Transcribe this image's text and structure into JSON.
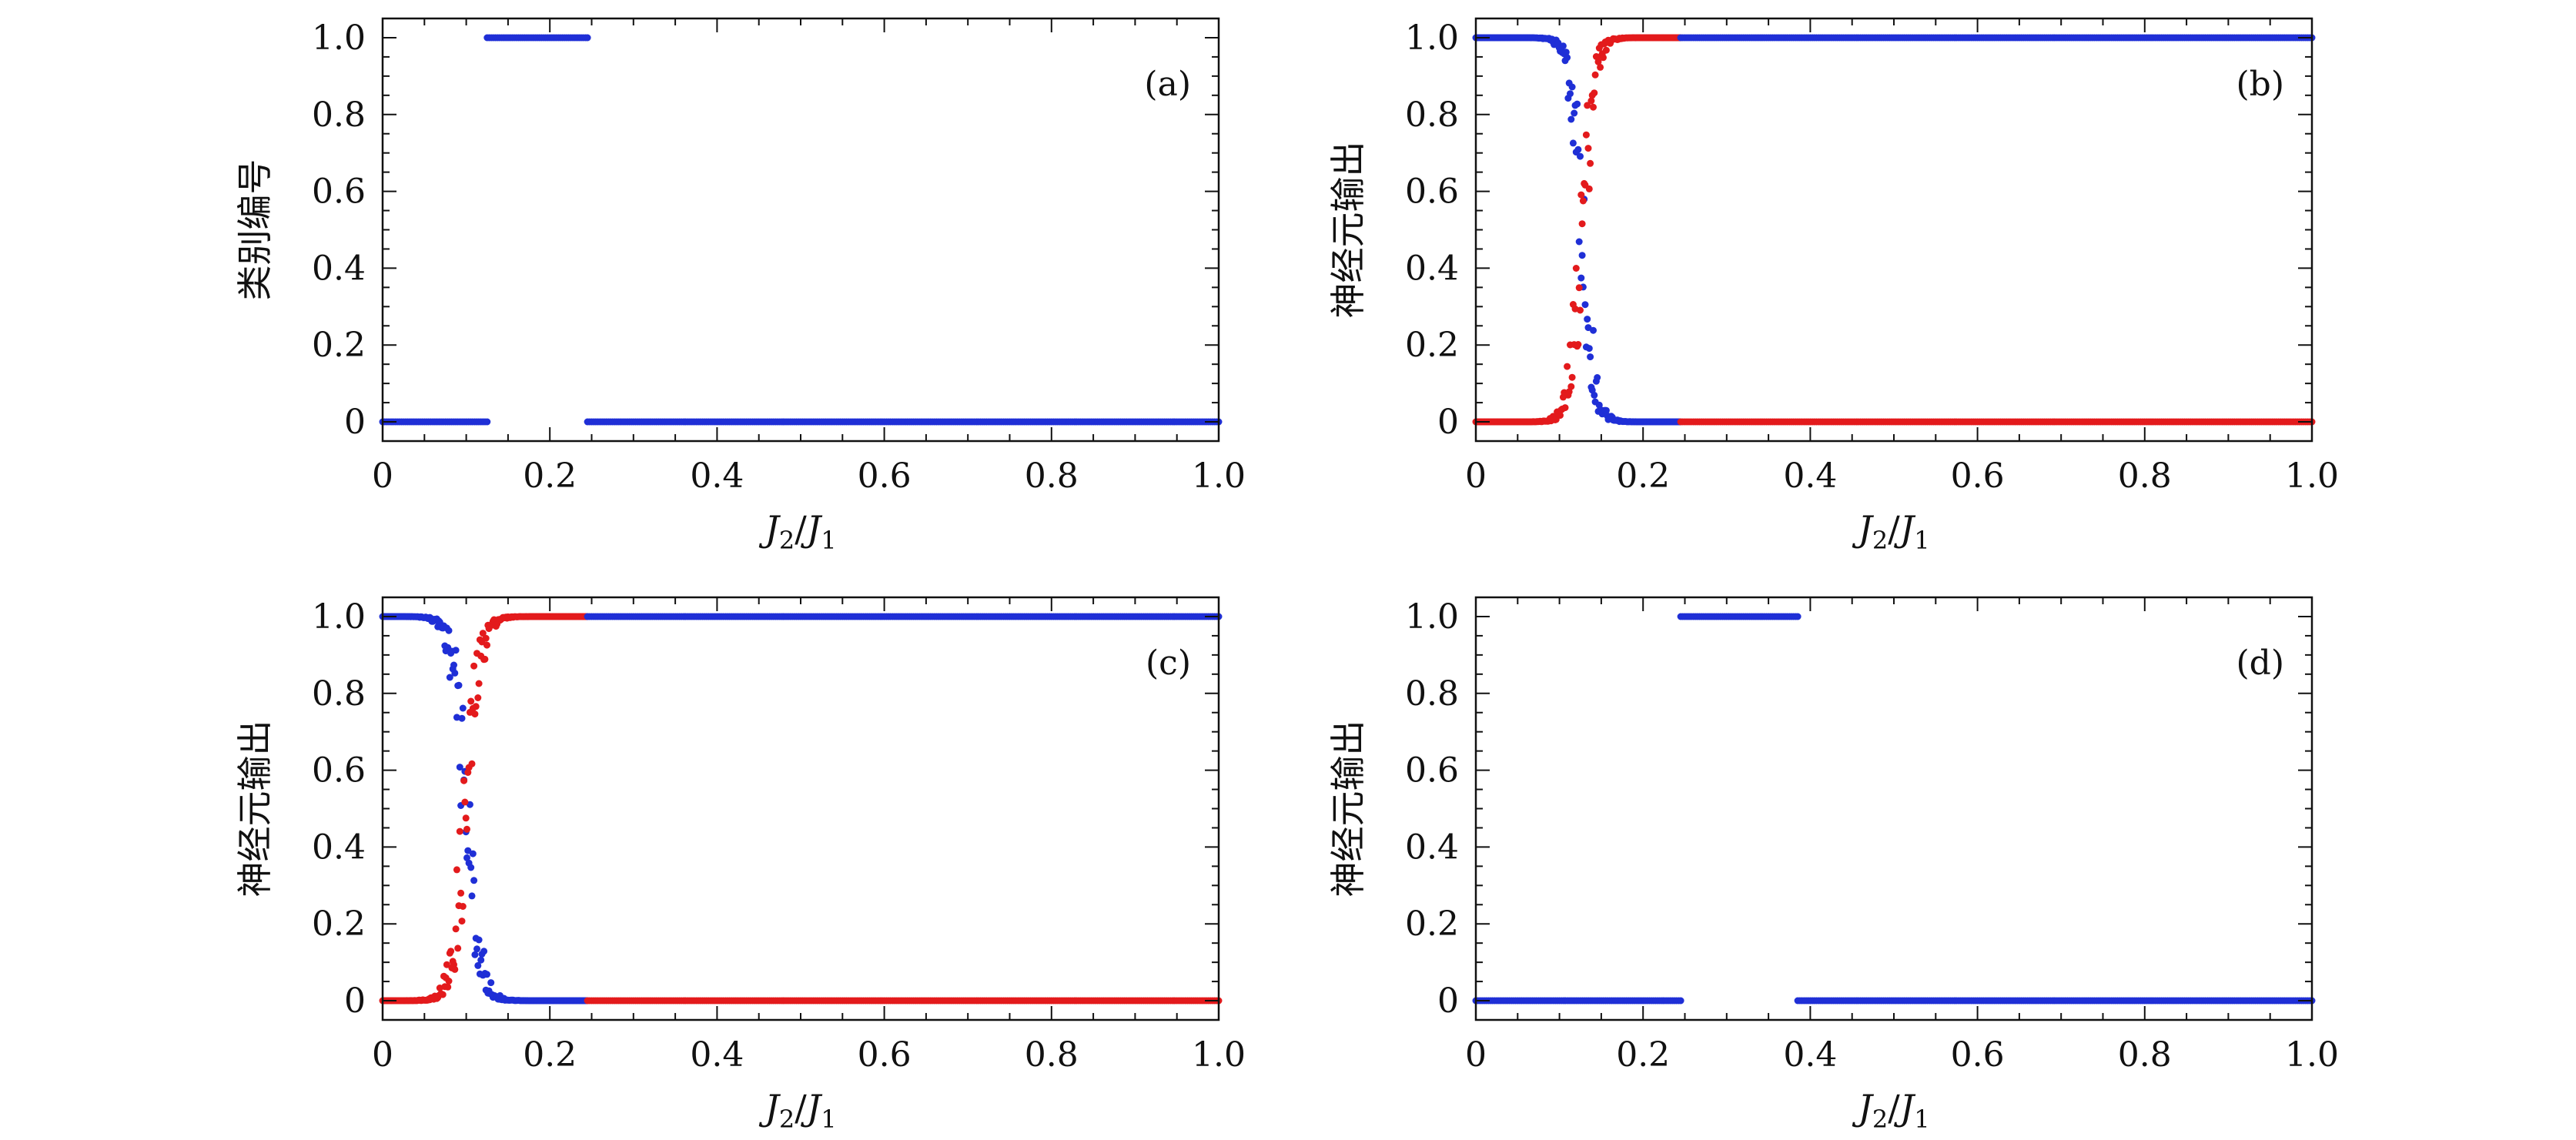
{
  "colors": {
    "blue": "#1f2fd6",
    "red": "#e31a1c",
    "axis": "#111111"
  },
  "chart_data": [
    {
      "type": "scatter",
      "panel_tag": "(a)",
      "xlabel": "J2/J1",
      "ylabel": "类别编号",
      "xlim": [
        0,
        1.0
      ],
      "ylim": [
        -0.05,
        1.05
      ],
      "xticks": [
        "0",
        "0.2",
        "0.4",
        "0.6",
        "0.8",
        "1.0"
      ],
      "yticks": [
        "0",
        "0.2",
        "0.4",
        "0.6",
        "0.8",
        "1.0"
      ],
      "grid": false,
      "series": [
        {
          "color": "blue",
          "segments": [
            {
              "x_start": 0.0,
              "x_end": 0.125,
              "y": 0
            },
            {
              "x_start": 0.125,
              "x_end": 0.245,
              "y": 1
            },
            {
              "x_start": 0.245,
              "x_end": 1.0,
              "y": 0
            }
          ]
        }
      ]
    },
    {
      "type": "scatter",
      "panel_tag": "(b)",
      "xlabel": "J2/J1",
      "ylabel": "神经元输出",
      "xlim": [
        0,
        1.0
      ],
      "ylim": [
        -0.05,
        1.05
      ],
      "xticks": [
        "0",
        "0.2",
        "0.4",
        "0.6",
        "0.8",
        "1.0"
      ],
      "yticks": [
        "0",
        "0.2",
        "0.4",
        "0.6",
        "0.8",
        "1.0"
      ],
      "grid": false,
      "series": [
        {
          "color": "blue",
          "transition": "down",
          "center": 0.127,
          "width": 0.007,
          "x_start": 0.0,
          "x_end": 0.245
        },
        {
          "color": "red",
          "transition": "up",
          "center": 0.127,
          "width": 0.007,
          "x_start": 0.0,
          "x_end": 0.245
        },
        {
          "color": "blue",
          "segments": [
            {
              "x_start": 0.245,
              "x_end": 1.0,
              "y": 1
            }
          ]
        },
        {
          "color": "red",
          "segments": [
            {
              "x_start": 0.245,
              "x_end": 1.0,
              "y": 0
            }
          ]
        }
      ]
    },
    {
      "type": "scatter",
      "panel_tag": "(c)",
      "xlabel": "J2/J1",
      "ylabel": "神经元输出",
      "xlim": [
        0,
        1.0
      ],
      "ylim": [
        -0.05,
        1.05
      ],
      "xticks": [
        "0",
        "0.2",
        "0.4",
        "0.6",
        "0.8",
        "1.0"
      ],
      "yticks": [
        "0",
        "0.2",
        "0.4",
        "0.6",
        "0.8",
        "1.0"
      ],
      "grid": false,
      "series": [
        {
          "color": "blue",
          "transition": "down",
          "center": 0.1,
          "width": 0.008,
          "x_start": 0.0,
          "x_end": 0.245
        },
        {
          "color": "red",
          "transition": "up",
          "center": 0.1,
          "width": 0.008,
          "x_start": 0.0,
          "x_end": 0.245
        },
        {
          "color": "blue",
          "segments": [
            {
              "x_start": 0.245,
              "x_end": 1.0,
              "y": 1
            }
          ]
        },
        {
          "color": "red",
          "segments": [
            {
              "x_start": 0.245,
              "x_end": 1.0,
              "y": 0
            }
          ]
        }
      ]
    },
    {
      "type": "scatter",
      "panel_tag": "(d)",
      "xlabel": "J2/J1",
      "ylabel": "神经元输出",
      "xlim": [
        0,
        1.0
      ],
      "ylim": [
        -0.05,
        1.05
      ],
      "xticks": [
        "0",
        "0.2",
        "0.4",
        "0.6",
        "0.8",
        "1.0"
      ],
      "yticks": [
        "0",
        "0.2",
        "0.4",
        "0.6",
        "0.8",
        "1.0"
      ],
      "grid": false,
      "series": [
        {
          "color": "blue",
          "segments": [
            {
              "x_start": 0.0,
              "x_end": 0.245,
              "y": 0
            },
            {
              "x_start": 0.245,
              "x_end": 0.385,
              "y": 1
            },
            {
              "x_start": 0.385,
              "x_end": 1.0,
              "y": 0
            }
          ]
        }
      ]
    }
  ]
}
